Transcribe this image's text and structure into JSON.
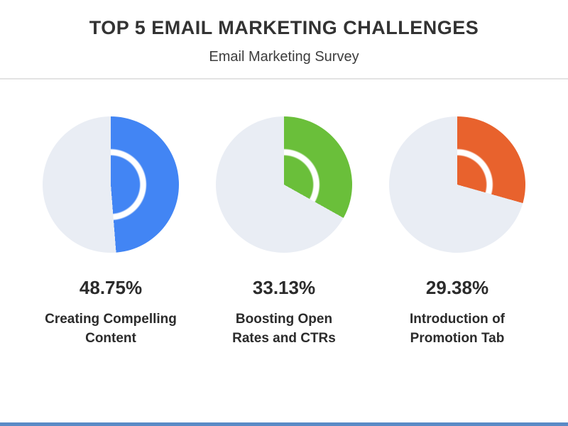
{
  "header": {
    "title": "TOP 5 EMAIL MARKETING CHALLENGES",
    "subtitle": "Email Marketing Survey"
  },
  "chart_data": {
    "type": "pie",
    "title": "TOP 5 EMAIL MARKETING CHALLENGES",
    "subtitle": "Email Marketing Survey",
    "track_color": "#e9edf4",
    "accent_color": "#5a8ac6",
    "series": [
      {
        "label": "Creating Compelling Content",
        "label_lines": [
          "Creating Compelling",
          "Content"
        ],
        "value": 48.75,
        "value_label": "48.75%",
        "color": "#4285f4"
      },
      {
        "label": "Boosting Open Rates and CTRs",
        "label_lines": [
          "Boosting Open",
          "Rates and CTRs"
        ],
        "value": 33.13,
        "value_label": "33.13%",
        "color": "#6abf3a"
      },
      {
        "label": "Introduction of Promotion Tab",
        "label_lines": [
          "Introduction of",
          "Promotion Tab"
        ],
        "value": 29.38,
        "value_label": "29.38%",
        "color": "#e8622d"
      }
    ]
  }
}
